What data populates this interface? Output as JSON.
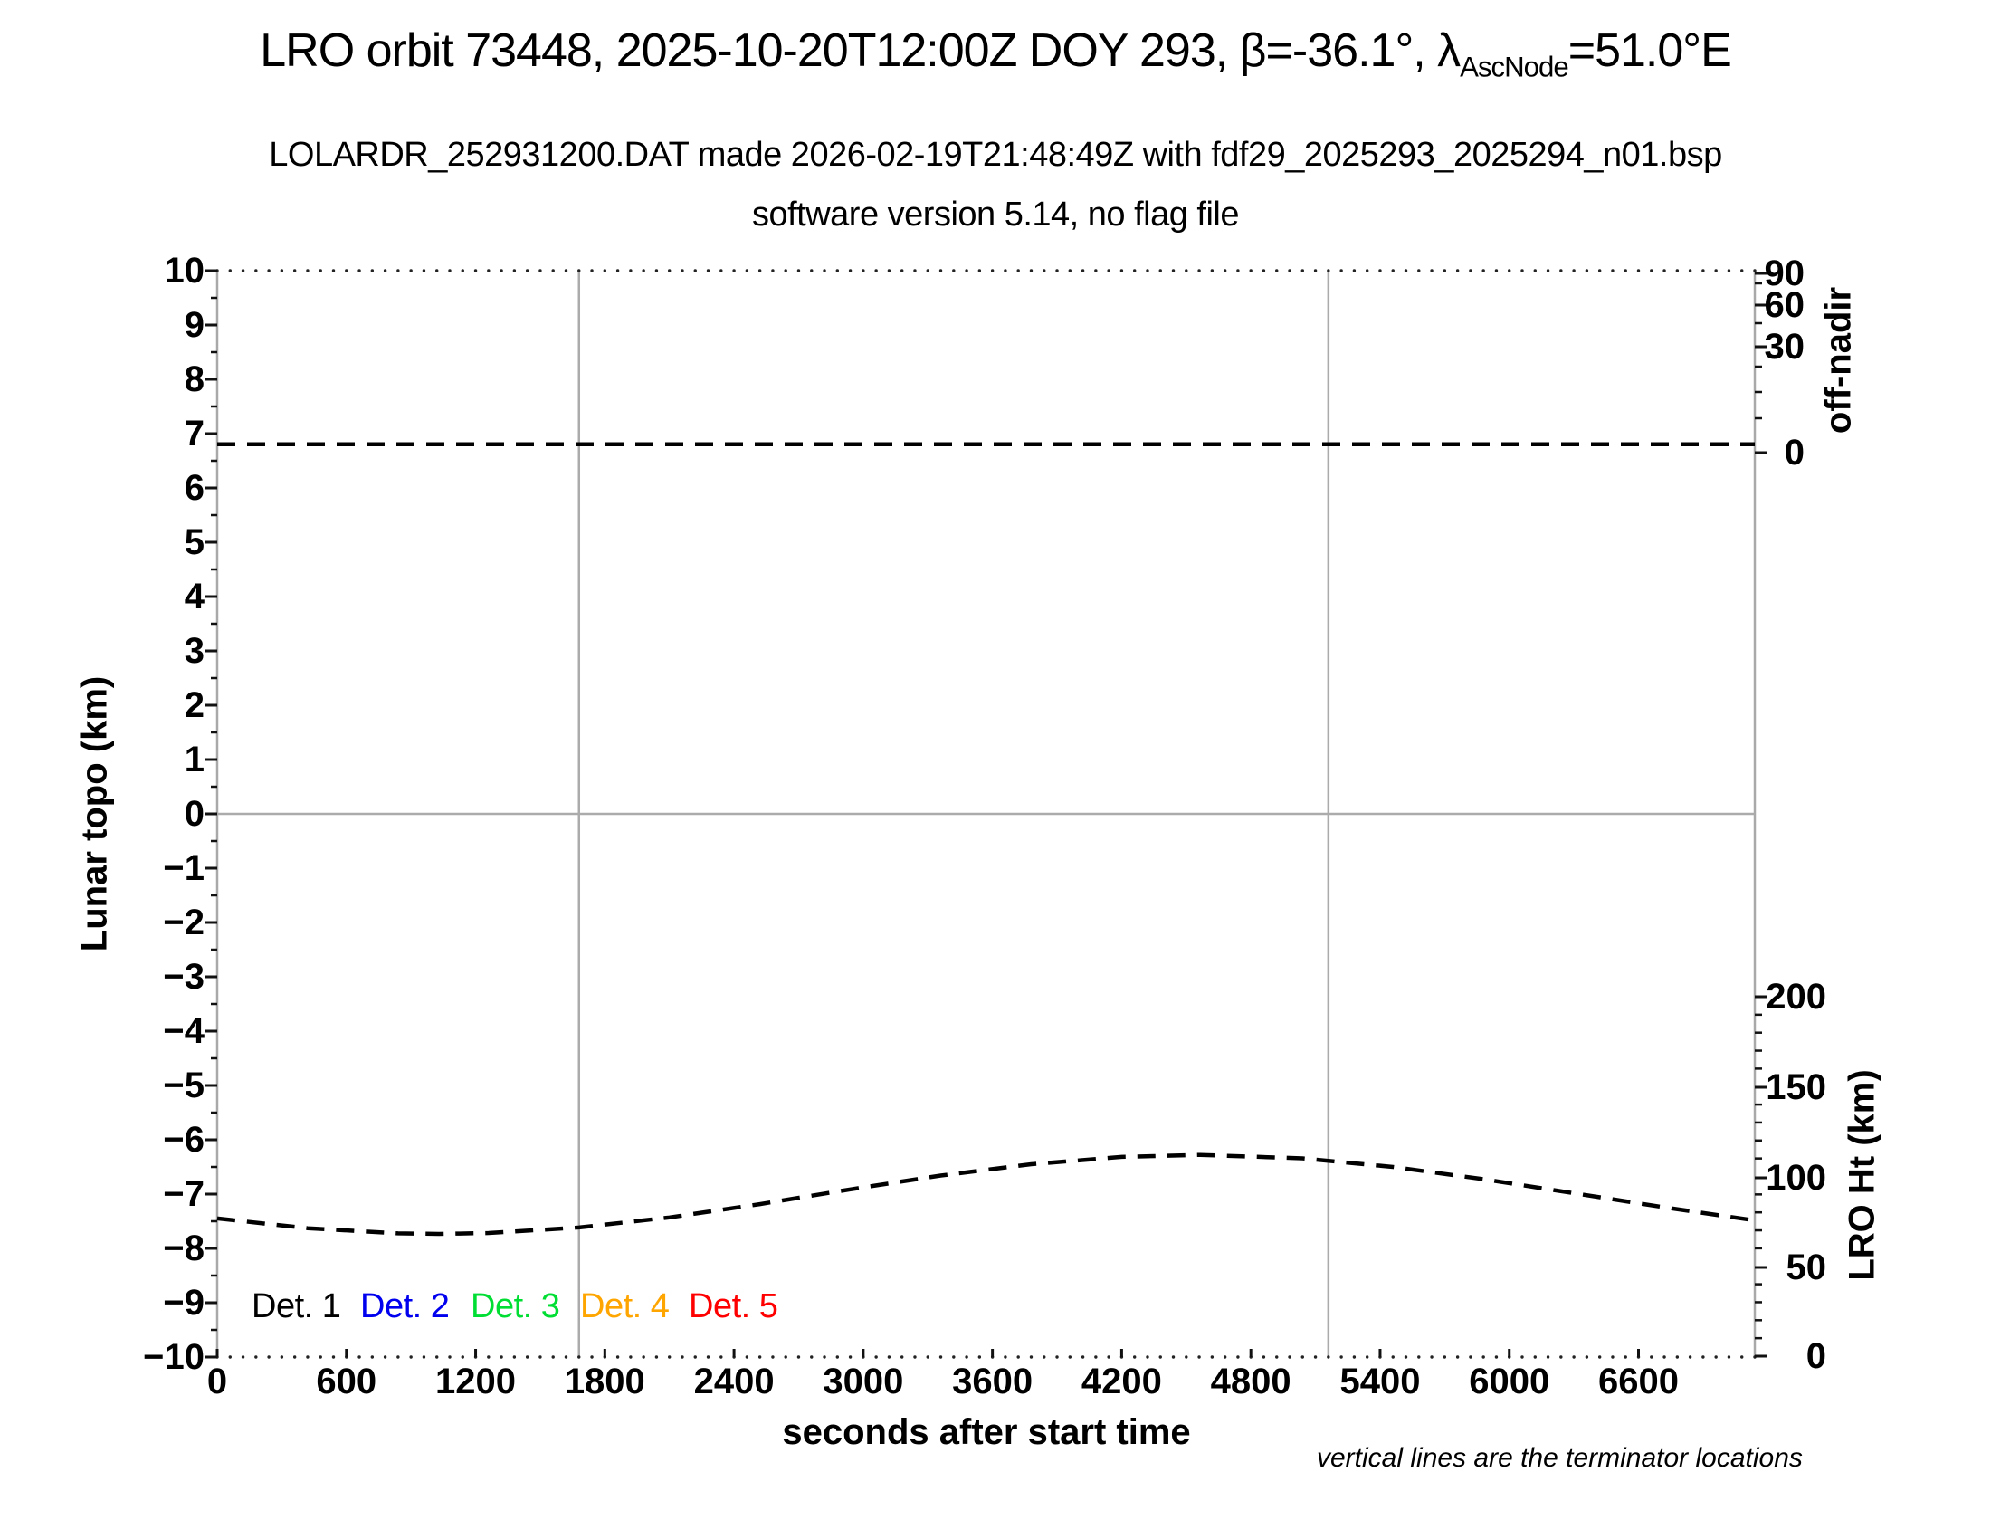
{
  "title": {
    "prefix": "LRO orbit 73448, 2025-10-20T12:00Z DOY 293, β=-36.1°, λ",
    "subscript": "AscNode",
    "suffix": "=51.0°E"
  },
  "subtitle_file": "LOLARDR_252931200.DAT made 2026-02-19T21:48:49Z with fdf29_2025293_2025294_n01.bsp",
  "subtitle_version": "software version 5.14, no flag file",
  "note": "vertical lines are the terminator locations",
  "legend": [
    {
      "label": "Det. 1",
      "color": "#000000"
    },
    {
      "label": "Det. 2",
      "color": "#0000ee"
    },
    {
      "label": "Det. 3",
      "color": "#00dd33"
    },
    {
      "label": "Det. 4",
      "color": "#ffa500"
    },
    {
      "label": "Det. 5",
      "color": "#ff0000"
    }
  ],
  "chart_data": {
    "type": "line",
    "title": "LRO orbit 73448, 2025-10-20T12:00Z DOY 293, beta=-36.1deg, lambda_AscNode=51.0E",
    "x_axis": {
      "label": "seconds after start time",
      "ticks": [
        0,
        600,
        1200,
        1800,
        2400,
        3000,
        3600,
        4200,
        4800,
        5400,
        6000,
        6600
      ],
      "range": [
        0,
        7140
      ],
      "minor_tick_interval_sec": 60
    },
    "y_axis_left": {
      "label": "Lunar topo (km)",
      "ticks": [
        10,
        9,
        8,
        7,
        6,
        5,
        4,
        3,
        2,
        1,
        0,
        -1,
        -2,
        -3,
        -4,
        -5,
        -6,
        -7,
        -8,
        -9,
        -10
      ],
      "range": [
        -10,
        10
      ]
    },
    "y_axis_right_top": {
      "label": "off-nadir",
      "ticks": [
        90,
        60,
        30,
        0
      ],
      "scale": "sqrt-compressed",
      "units": "deg"
    },
    "y_axis_right_bottom": {
      "label": "LRO Ht (km)",
      "ticks": [
        200,
        150,
        100,
        50,
        0
      ],
      "range": [
        0,
        215
      ]
    },
    "grid": {
      "horizontal_line_at_topo": 0,
      "color": "#ababab"
    },
    "terminator_lines_sec": [
      1680,
      5160
    ],
    "series": [
      {
        "name": "off-nadir angle",
        "axis": "right-top",
        "style": "dashed",
        "color": "#000000",
        "x": [
          0,
          7140
        ],
        "values": [
          0.2,
          0.2
        ]
      },
      {
        "name": "LRO height",
        "axis": "right-bottom",
        "style": "dashed",
        "color": "#000000",
        "x": [
          0,
          420,
          840,
          1030,
          1260,
          1680,
          2100,
          2520,
          2940,
          3360,
          3780,
          4200,
          4565,
          5040,
          5460,
          5880,
          6300,
          6720,
          7140
        ],
        "values": [
          76.6,
          71.2,
          68.3,
          68.0,
          68.5,
          71.6,
          77.2,
          84.6,
          92.8,
          100.5,
          106.8,
          110.9,
          112.0,
          110.1,
          105.3,
          98.5,
          90.7,
          82.8,
          75.5
        ]
      }
    ],
    "legend_entries": [
      "Det. 1",
      "Det. 2",
      "Det. 3",
      "Det. 4",
      "Det. 5"
    ],
    "annotation": "vertical lines are the terminator locations"
  }
}
